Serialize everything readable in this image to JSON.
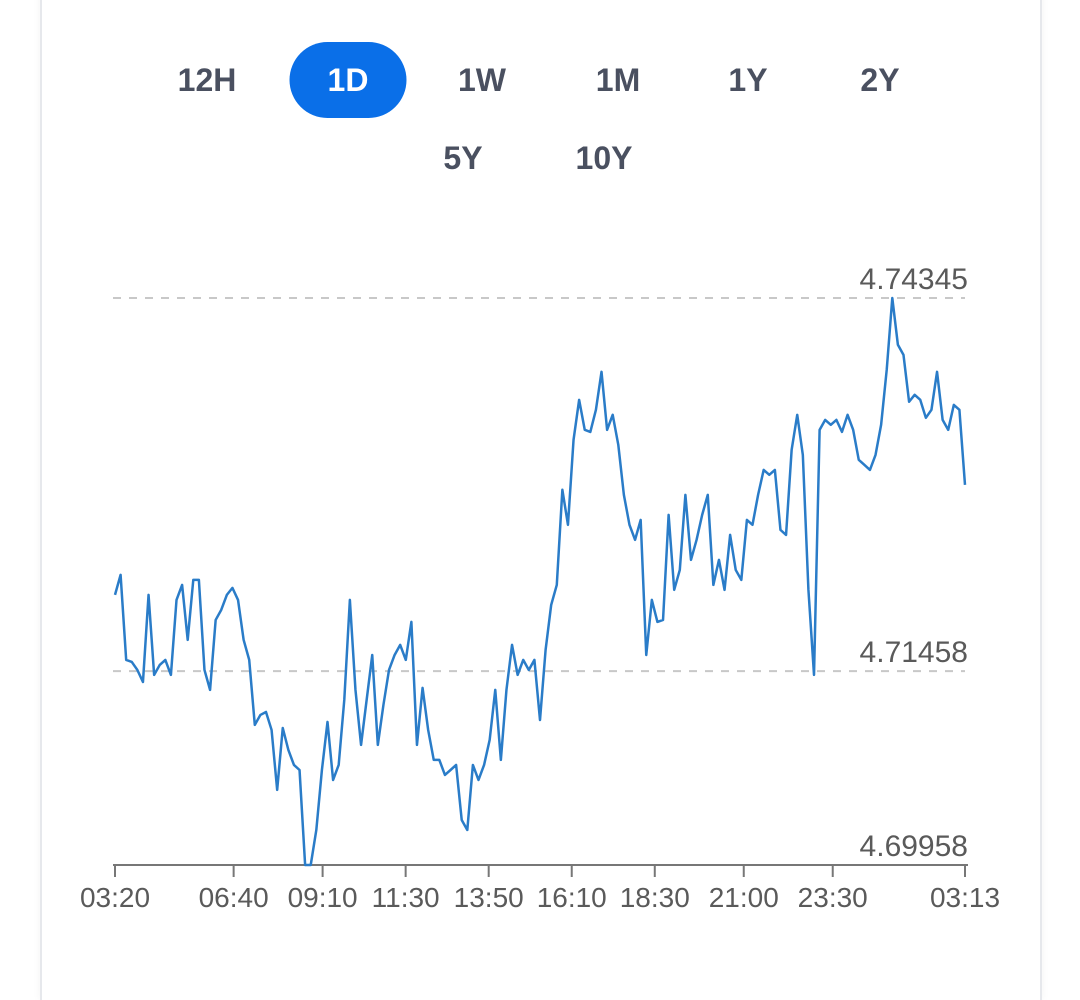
{
  "tabs": [
    [
      {
        "label": "12H",
        "selected": false
      },
      {
        "label": "1D",
        "selected": true
      },
      {
        "label": "1W",
        "selected": false
      },
      {
        "label": "1M",
        "selected": false
      },
      {
        "label": "1Y",
        "selected": false
      },
      {
        "label": "2Y",
        "selected": false
      }
    ],
    [
      {
        "label": "5Y",
        "selected": false
      },
      {
        "label": "10Y",
        "selected": false
      }
    ]
  ],
  "chart_data": {
    "type": "line",
    "color": "#2a7cc8",
    "xticks": [
      "03:20",
      "06:40",
      "09:10",
      "11:30",
      "13:50",
      "16:10",
      "18:30",
      "21:00",
      "23:30",
      "03:13"
    ],
    "ylim": [
      4.69958,
      4.74345
    ],
    "yticks": [
      4.69958,
      4.71458,
      4.74345
    ],
    "grid": true,
    "values": [
      4.72048,
      4.72203,
      4.71545,
      4.71529,
      4.71467,
      4.71374,
      4.72048,
      4.71429,
      4.71506,
      4.71545,
      4.71429,
      4.72009,
      4.72125,
      4.717,
      4.72164,
      4.72164,
      4.71467,
      4.71313,
      4.71854,
      4.71932,
      4.72048,
      4.72102,
      4.72009,
      4.717,
      4.71545,
      4.71042,
      4.71119,
      4.71142,
      4.71003,
      4.70539,
      4.71018,
      4.70848,
      4.70732,
      4.70693,
      4.69958,
      4.69958,
      4.70229,
      4.70693,
      4.71065,
      4.70616,
      4.70732,
      4.71235,
      4.72009,
      4.71313,
      4.70887,
      4.71235,
      4.71583,
      4.70887,
      4.71196,
      4.71467,
      4.71583,
      4.71661,
      4.71545,
      4.71839,
      4.70887,
      4.71328,
      4.71003,
      4.70771,
      4.70771,
      4.70655,
      4.70693,
      4.70732,
      4.70306,
      4.70229,
      4.70732,
      4.70616,
      4.70732,
      4.70926,
      4.71313,
      4.70771,
      4.71313,
      4.71661,
      4.71429,
      4.71545,
      4.71467,
      4.71545,
      4.7108,
      4.71622,
      4.7197,
      4.72125,
      4.72861,
      4.7259,
      4.73248,
      4.73557,
      4.73325,
      4.73309,
      4.7348,
      4.73774,
      4.73325,
      4.73441,
      4.73209,
      4.72822,
      4.7259,
      4.72474,
      4.72628,
      4.71583,
      4.72009,
      4.71839,
      4.71854,
      4.72667,
      4.72087,
      4.72241,
      4.72822,
      4.72319,
      4.72474,
      4.72667,
      4.72822,
      4.72125,
      4.72319,
      4.72087,
      4.72512,
      4.72241,
      4.72164,
      4.72628,
      4.7259,
      4.72822,
      4.73015,
      4.72977,
      4.73015,
      4.72551,
      4.72512,
      4.7317,
      4.73441,
      4.73131,
      4.72087,
      4.71429,
      4.73325,
      4.73402,
      4.73364,
      4.73402,
      4.73309,
      4.73441,
      4.73325,
      4.73093,
      4.73054,
      4.73015,
      4.73131,
      4.73364,
      4.73789,
      4.74345,
      4.73983,
      4.73905,
      4.73542,
      4.73596,
      4.73557,
      4.73418,
      4.7348,
      4.73774,
      4.73402,
      4.73325,
      4.73518,
      4.7348,
      4.72899
    ]
  }
}
